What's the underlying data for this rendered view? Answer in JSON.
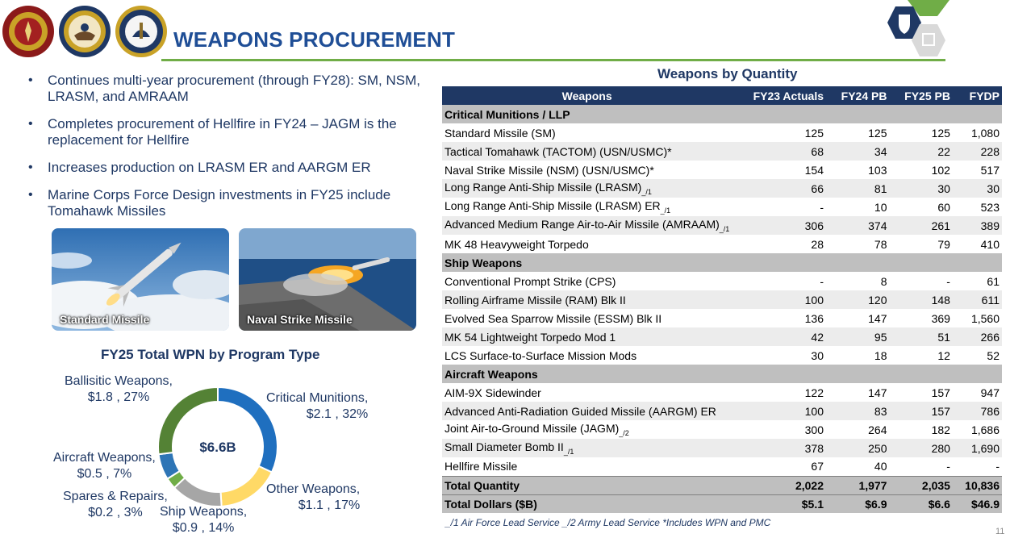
{
  "header": {
    "title": "WEAPONS PROCUREMENT",
    "colors": {
      "title": "#1f4e96",
      "rule": "#70ad47"
    }
  },
  "bullets": [
    "Continues multi-year procurement (through FY28): SM, NSM, LRASM, and AMRAAM",
    "Completes procurement of Hellfire in FY24 – JAGM is the replacement for Hellfire",
    "Increases production on LRASM ER and AARGM ER",
    "Marine Corps Force Design investments in FY25 include Tomahawk Missiles"
  ],
  "photos": [
    {
      "label": "Standard Missile"
    },
    {
      "label": "Naval Strike Missile"
    }
  ],
  "donut": {
    "title": "FY25 Total WPN by Program Type",
    "center": "$6.6B",
    "labels": {
      "critical_name": "Critical Munitions,",
      "critical_val": "$2.1 , 32%",
      "other_name": "Other Weapons,",
      "other_val": "$1.1 , 17%",
      "ship_name": "Ship Weapons,",
      "ship_val": "$0.9 , 14%",
      "spares_name": "Spares & Repairs,",
      "spares_val": "$0.2 , 3%",
      "aircraft_name": "Aircraft Weapons,",
      "aircraft_val": "$0.5 , 7%",
      "ballistic_name": "Ballisitic Weapons,",
      "ballistic_val": "$1.8 , 27%"
    }
  },
  "chart_data": {
    "type": "pie",
    "donut": true,
    "title": "FY25 Total WPN by Program Type",
    "center_label": "$6.6B",
    "slices": [
      {
        "name": "Critical Munitions",
        "value": 2.1,
        "percent": 32,
        "color": "#1f6fbf"
      },
      {
        "name": "Other Weapons",
        "value": 1.1,
        "percent": 17,
        "color": "#ffd966"
      },
      {
        "name": "Ship Weapons",
        "value": 0.9,
        "percent": 14,
        "color": "#a6a6a6"
      },
      {
        "name": "Spares & Repairs",
        "value": 0.2,
        "percent": 3,
        "color": "#70ad47"
      },
      {
        "name": "Aircraft Weapons",
        "value": 0.5,
        "percent": 7,
        "color": "#2e75b6"
      },
      {
        "name": "Ballisitic Weapons",
        "value": 1.8,
        "percent": 27,
        "color": "#548235"
      }
    ]
  },
  "table": {
    "title": "Weapons by Quantity",
    "headers": [
      "Weapons",
      "FY23 Actuals",
      "FY24 PB",
      "FY25 PB",
      "FYDP"
    ],
    "sections": [
      {
        "name": "Critical Munitions / LLP",
        "rows": [
          {
            "name": "Standard Missile (SM)",
            "note": "",
            "v": [
              "125",
              "125",
              "125",
              "1,080"
            ]
          },
          {
            "name": "Tactical Tomahawk (TACTOM) (USN/USMC)*",
            "note": "",
            "v": [
              "68",
              "34",
              "22",
              "228"
            ]
          },
          {
            "name": "Naval Strike Missile (NSM) (USN/USMC)*",
            "note": "",
            "v": [
              "154",
              "103",
              "102",
              "517"
            ]
          },
          {
            "name": "Long Range Anti-Ship Missile (LRASM)",
            "note": "_/1",
            "v": [
              "66",
              "81",
              "30",
              "30"
            ]
          },
          {
            "name": "Long Range Anti-Ship Missile (LRASM) ER",
            "note": "_/1",
            "v": [
              "-",
              "10",
              "60",
              "523"
            ]
          },
          {
            "name": "Advanced Medium Range Air-to-Air Missile (AMRAAM)",
            "note": "_/1",
            "v": [
              "306",
              "374",
              "261",
              "389"
            ]
          },
          {
            "name": "MK 48 Heavyweight Torpedo",
            "note": "",
            "v": [
              "28",
              "78",
              "79",
              "410"
            ]
          }
        ]
      },
      {
        "name": "Ship Weapons",
        "rows": [
          {
            "name": "Conventional Prompt Strike (CPS)",
            "note": "",
            "v": [
              "-",
              "8",
              "-",
              "61"
            ]
          },
          {
            "name": "Rolling Airframe Missile (RAM) Blk II",
            "note": "",
            "v": [
              "100",
              "120",
              "148",
              "611"
            ]
          },
          {
            "name": "Evolved Sea Sparrow Missile (ESSM) Blk II",
            "note": "",
            "v": [
              "136",
              "147",
              "369",
              "1,560"
            ]
          },
          {
            "name": "MK 54 Lightweight Torpedo Mod 1",
            "note": "",
            "v": [
              "42",
              "95",
              "51",
              "266"
            ]
          },
          {
            "name": "LCS Surface-to-Surface Mission Mods",
            "note": "",
            "v": [
              "30",
              "18",
              "12",
              "52"
            ]
          }
        ]
      },
      {
        "name": "Aircraft Weapons",
        "rows": [
          {
            "name": "AIM-9X Sidewinder",
            "note": "",
            "v": [
              "122",
              "147",
              "157",
              "947"
            ]
          },
          {
            "name": "Advanced Anti-Radiation Guided Missile (AARGM) ER",
            "note": "",
            "v": [
              "100",
              "83",
              "157",
              "786"
            ]
          },
          {
            "name": "Joint Air-to-Ground Missile (JAGM)",
            "note": "_/2",
            "v": [
              "300",
              "264",
              "182",
              "1,686"
            ]
          },
          {
            "name": "Small Diameter Bomb II",
            "note": "_/1",
            "v": [
              "378",
              "250",
              "280",
              "1,690"
            ]
          },
          {
            "name": "Hellfire Missile",
            "note": "",
            "v": [
              "67",
              "40",
              "-",
              "-"
            ]
          }
        ]
      }
    ],
    "total_quantity": {
      "name": "Total Quantity",
      "v": [
        "2,022",
        "1,977",
        "2,035",
        "10,836"
      ]
    },
    "total_dollars": {
      "name": "Total Dollars ($B)",
      "v": [
        "$5.1",
        "$6.9",
        "$6.6",
        "$46.9"
      ]
    }
  },
  "footnote": "_/1 Air Force Lead Service   _/2 Army Lead Service   *Includes WPN and PMC",
  "page_number": "11"
}
